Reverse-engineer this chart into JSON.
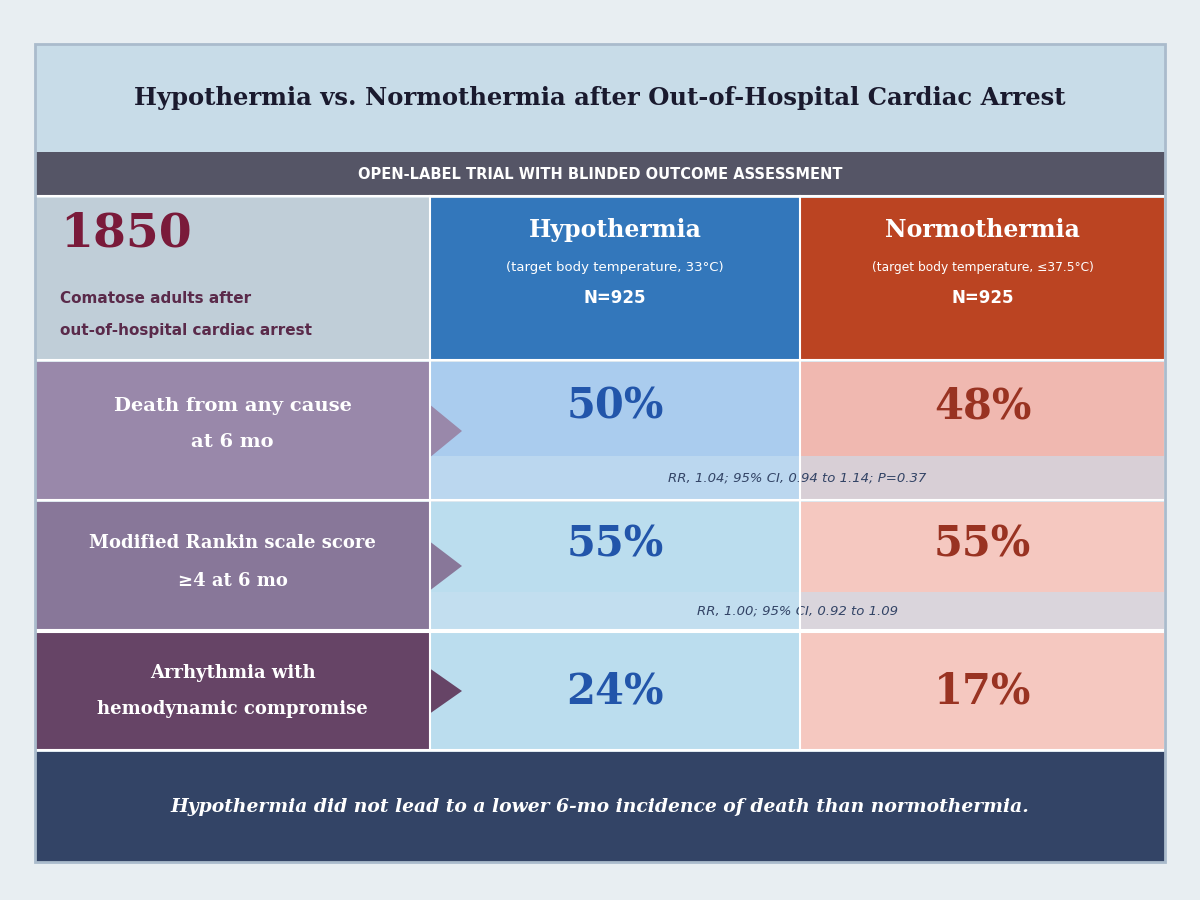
{
  "title": "Hypothermia vs. Normothermia after Out-of-Hospital Cardiac Arrest",
  "subtitle": "OPEN-LABEL TRIAL WITH BLINDED OUTCOME ASSESSMENT",
  "n_total": "1850",
  "n_desc1": "Comatose adults after",
  "n_desc2": "out-of-hospital cardiac arrest",
  "hypo_label": "Hypothermia",
  "hypo_sub": "(target body temperature, 33°C)",
  "hypo_n": "N=925",
  "normo_label": "Normothermia",
  "normo_sub": "(target body temperature, ≤37.5°C)",
  "normo_n": "N=925",
  "row1_label1": "Death from any cause",
  "row1_label2": "at 6 mo",
  "row1_hypo": "50%",
  "row1_normo": "48%",
  "row1_rr": "RR, 1.04; 95% CI, 0.94 to 1.14; P=0.37",
  "row2_label1": "Modified Rankin scale score",
  "row2_label2": "≥4 at 6 mo",
  "row2_hypo": "55%",
  "row2_normo": "55%",
  "row2_rr": "RR, 1.00; 95% CI, 0.92 to 1.09",
  "row3_label1": "Arrhythmia with",
  "row3_label2": "hemodynamic compromise",
  "row3_hypo": "24%",
  "row3_normo": "17%",
  "footer": "Hypothermia did not lead to a lower 6-mo incidence of death than normothermia.",
  "bg_color": "#dde8ef",
  "subtitle_bg": "#555566",
  "hypo_header_bg": "#3377bb",
  "normo_header_bg": "#bb4422",
  "row1_left_bg": "#9988aa",
  "row1_hypo_bg": "#aaccee",
  "row1_normo_bg": "#f0b8b0",
  "row2_left_bg": "#887799",
  "row2_hypo_bg": "#bbddee",
  "row2_normo_bg": "#f5c8c0",
  "row3_left_bg": "#664466",
  "row3_hypo_bg": "#bbddee",
  "row3_normo_bg": "#f5c8c0",
  "footer_bg": "#334466",
  "hypo_pct_color": "#2255aa",
  "normo_pct_color": "#993322",
  "rr_color": "#334466",
  "footer_text_color": "#ffffff",
  "title_color": "#1a1a2e",
  "subtitle_color": "#ffffff",
  "outer_bg": "#e8eef2"
}
